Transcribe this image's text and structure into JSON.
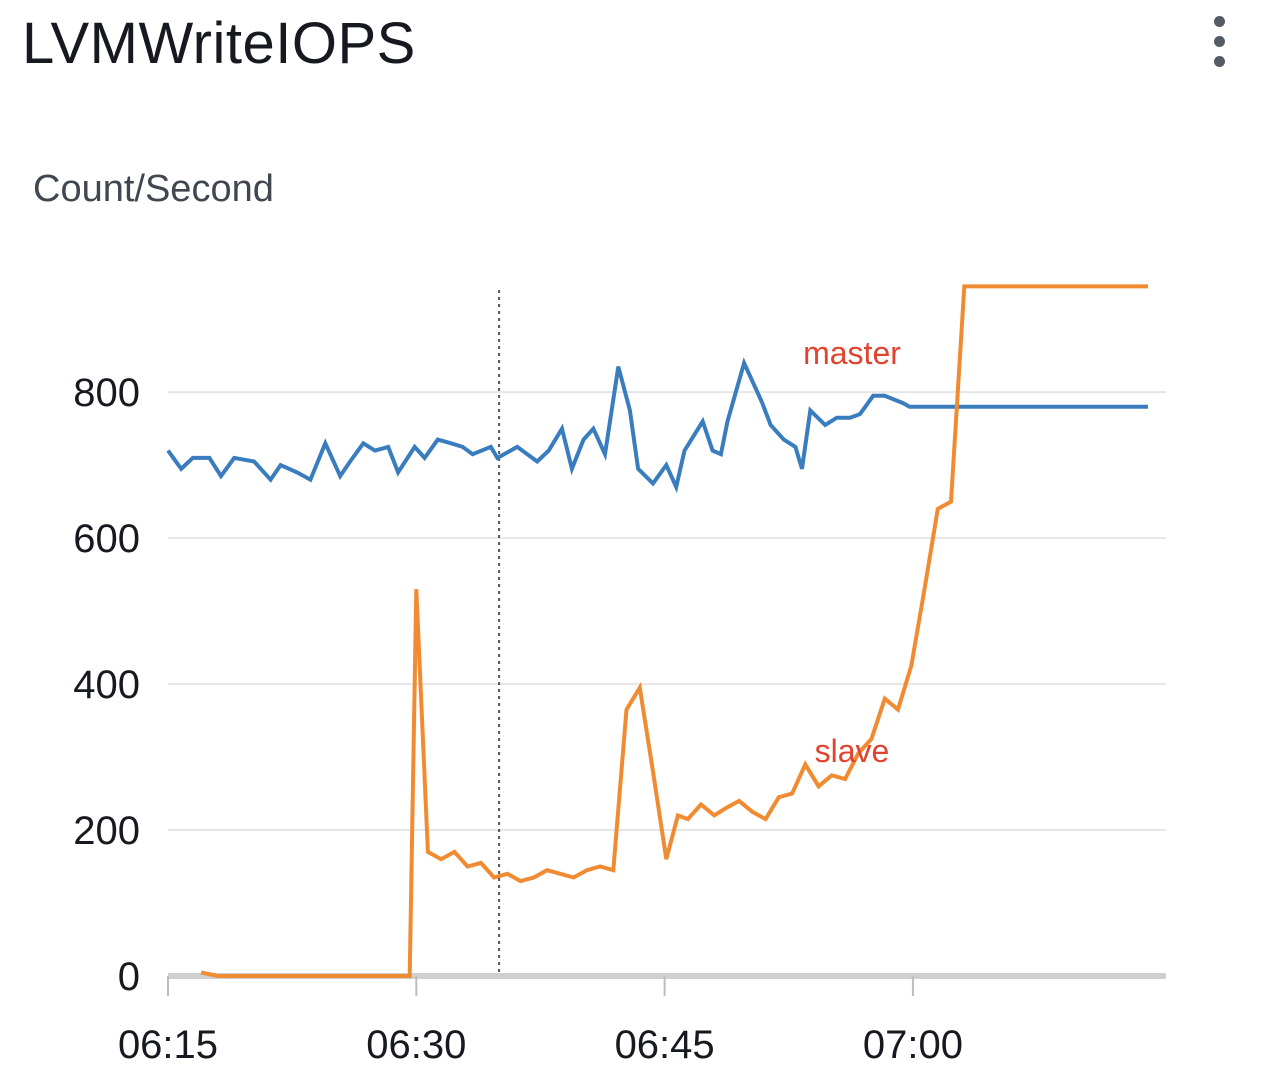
{
  "header": {
    "title": "LVMWriteIOPS",
    "menu_icon": "vertical-ellipsis-icon"
  },
  "chart_data": {
    "type": "line",
    "title": "LVMWriteIOPS",
    "ylabel": "Count/Second",
    "xlabel": "",
    "ylim": [
      0,
      900
    ],
    "y_ticks": [
      0,
      200,
      400,
      600,
      800
    ],
    "x_tick_labels": [
      "06:15",
      "06:30",
      "06:45",
      "07:00"
    ],
    "x_tick_minutes": [
      15,
      30,
      45,
      60
    ],
    "x_range_minutes": [
      15,
      74.2
    ],
    "grid": true,
    "marker_line_x": "06:35",
    "marker_line_minutes": 35,
    "series": [
      {
        "name": "master",
        "color": "#3a7dbf",
        "x": [
          15,
          15.8,
          16.5,
          17.5,
          18.2,
          19,
          20.2,
          21.2,
          21.8,
          22.8,
          23.6,
          24.5,
          25.4,
          26,
          26.8,
          27.5,
          28.3,
          28.9,
          29.9,
          30.5,
          31.3,
          32.1,
          32.8,
          33.4,
          34.5,
          34.9,
          36.1,
          37.3,
          38,
          38.8,
          39.4,
          40.1,
          40.7,
          41.4,
          42.2,
          42.9,
          43.4,
          44.3,
          45.1,
          45.7,
          46.2,
          47.3,
          47.9,
          48.4,
          48.8,
          49.8,
          50.3,
          50.9,
          51.4,
          52.2,
          52.9,
          53.3,
          53.8,
          54.7,
          55.4,
          56.2,
          56.8,
          57.6,
          58.3,
          59.4,
          59.8,
          60.3,
          61,
          62.1,
          62.8,
          63.6,
          64.1,
          64.8,
          65.3,
          65.9,
          66.4,
          67,
          67.7,
          68.3,
          68.8,
          69.6,
          70.3,
          71,
          71.7,
          72.3,
          72.9,
          73.5,
          74.2
        ],
        "values": [
          720,
          695,
          710,
          710,
          685,
          710,
          705,
          680,
          700,
          690,
          680,
          730,
          685,
          705,
          730,
          720,
          725,
          690,
          725,
          710,
          735,
          730,
          725,
          715,
          725,
          710,
          725,
          705,
          720,
          750,
          695,
          735,
          750,
          715,
          835,
          775,
          695,
          675,
          700,
          670,
          720,
          760,
          720,
          715,
          760,
          840,
          815,
          785,
          755,
          735,
          725,
          695,
          775,
          755,
          765,
          765,
          770,
          795,
          795,
          785,
          780,
          780,
          780,
          780,
          780,
          780,
          780,
          780,
          780,
          780,
          780,
          780,
          780,
          780,
          780,
          780,
          780,
          780,
          780,
          780,
          780,
          780,
          780
        ]
      },
      {
        "name": "slave",
        "color": "#f18b32",
        "x": [
          17,
          18,
          19,
          20,
          21,
          22,
          23,
          24,
          25,
          26,
          27,
          28,
          29,
          29.6,
          30,
          30.7,
          31.5,
          32.3,
          33.1,
          33.9,
          34.7,
          35.5,
          36.3,
          37.1,
          37.9,
          38.7,
          39.5,
          40.3,
          41.1,
          41.9,
          42.7,
          43.5,
          44.3,
          45.1,
          45.8,
          46.4,
          47.2,
          48,
          48.7,
          49.5,
          50.3,
          51.1,
          51.9,
          52.7,
          53.5,
          54.3,
          55.1,
          55.9,
          56.7,
          57.5,
          58.3,
          59.1,
          59.9,
          60.7,
          61.5,
          62.3,
          63.1,
          63.9,
          64.7,
          65.5,
          66.3,
          67.1,
          67.9,
          68.7,
          69.5,
          70.3,
          71.1,
          71.9,
          72.7,
          73.5,
          74.2
        ],
        "values": [
          5,
          0,
          0,
          0,
          0,
          0,
          0,
          0,
          0,
          0,
          0,
          0,
          0,
          0,
          530,
          170,
          160,
          170,
          150,
          155,
          135,
          140,
          130,
          135,
          145,
          140,
          135,
          145,
          150,
          145,
          365,
          395,
          280,
          160,
          220,
          215,
          235,
          220,
          230,
          240,
          225,
          215,
          245,
          250,
          290,
          260,
          275,
          270,
          305,
          325,
          380,
          365,
          425,
          530,
          640,
          650,
          945,
          945,
          945,
          945,
          945,
          945,
          945,
          945,
          945,
          945,
          945,
          945,
          945,
          945,
          945
        ]
      }
    ],
    "annotations": [
      {
        "text": "master",
        "series": "master"
      },
      {
        "text": "slave",
        "series": "slave"
      }
    ]
  }
}
